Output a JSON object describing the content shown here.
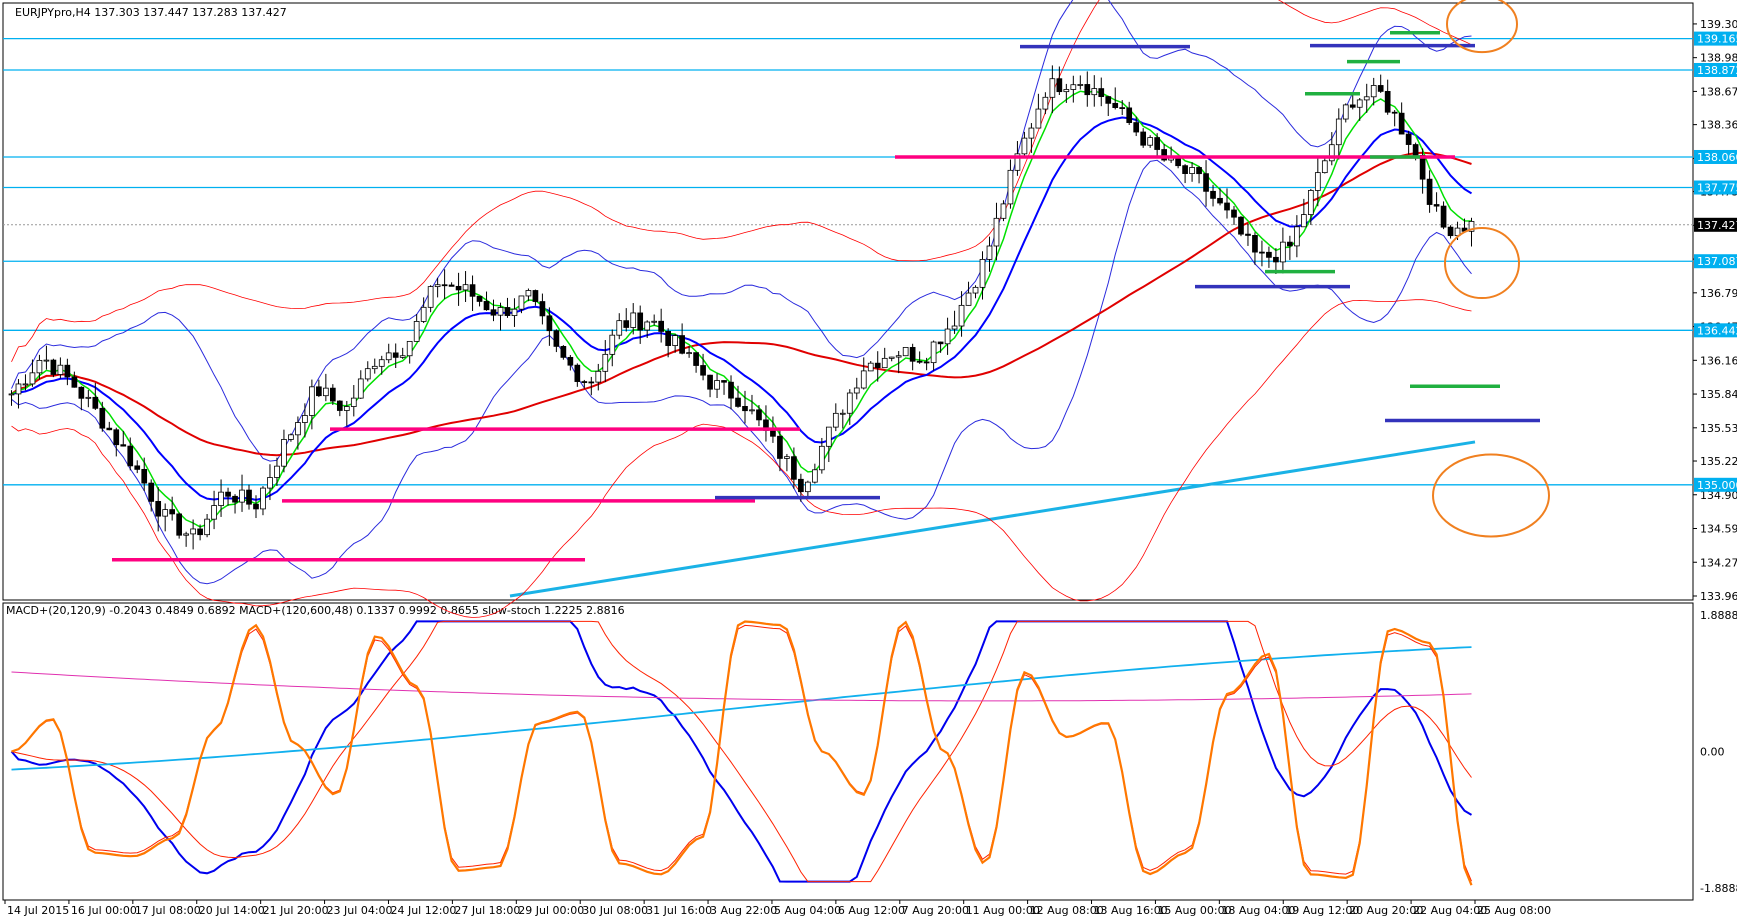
{
  "chart_data": {
    "type": "candlestick",
    "title": "EURJPYpro,H4  137.303 137.447 137.283 137.427",
    "symbol": "EURJPYpro",
    "timeframe": "H4",
    "ohlc_current": {
      "open": 137.303,
      "high": 137.447,
      "low": 137.283,
      "close": 137.427
    },
    "price_axis": {
      "ylim": [
        133.962,
        139.46
      ],
      "ticks": [
        139.302,
        138.987,
        138.672,
        138.362,
        138.047,
        137.737,
        137.422,
        137.107,
        136.792,
        136.477,
        136.162,
        135.847,
        135.532,
        135.222,
        134.907,
        134.592,
        134.277,
        133.962
      ]
    },
    "current_price_label": "137.427",
    "horizontal_levels": [
      {
        "value": 139.165,
        "label": "139.165"
      },
      {
        "value": 138.872,
        "label": "138.872"
      },
      {
        "value": 138.06,
        "label": "138.060"
      },
      {
        "value": 137.775,
        "label": "137.775"
      },
      {
        "value": 137.087,
        "label": "137.087"
      },
      {
        "value": 136.442,
        "label": "136.442"
      },
      {
        "value": 135.0,
        "label": "135.000"
      }
    ],
    "x_axis": {
      "labels": [
        "14 Jul 2015",
        "16 Jul 00:00",
        "17 Jul 08:00",
        "20 Jul 14:00",
        "21 Jul 20:00",
        "23 Jul 04:00",
        "24 Jul 12:00",
        "27 Jul 18:00",
        "29 Jul 00:00",
        "30 Jul 08:00",
        "31 Jul 16:00",
        "3 Aug 22:00",
        "5 Aug 04:00",
        "6 Aug 12:00",
        "7 Aug 20:00",
        "11 Aug 00:00",
        "12 Aug 08:00",
        "13 Aug 16:00",
        "15 Aug 00:00",
        "18 Aug 04:00",
        "19 Aug 12:00",
        "20 Aug 20:00",
        "22 Aug 04:00",
        "25 Aug 08:00"
      ]
    },
    "series_anchor_prices": [
      135.85,
      136.2,
      135.95,
      135.6,
      135.2,
      134.7,
      134.5,
      134.95,
      134.8,
      135.4,
      135.9,
      135.7,
      136.2,
      136.3,
      136.9,
      136.8,
      136.6,
      136.75,
      136.2,
      135.95,
      136.5,
      136.55,
      136.25,
      135.95,
      135.8,
      135.4,
      135.0,
      135.55,
      136.1,
      136.25,
      136.2,
      136.55,
      137.1,
      138.0,
      138.7,
      138.8,
      138.6,
      138.3,
      138.0,
      137.85,
      137.5,
      137.1,
      137.2,
      137.9,
      138.6,
      138.65,
      138.2,
      137.4,
      137.43
    ],
    "sub_indicator": {
      "header": "MACD+(20,120,9) -0.2043 0.4849 0.6892  MACD+(120,600,48) 0.1337 0.9992 0.8655  slow-stoch 1.2225 2.8816",
      "ylim": [
        -1.8888,
        1.8888
      ],
      "ticks": [
        "1.8888",
        "0.00",
        "-1.8888"
      ],
      "stoch_anchors": [
        0.0,
        0.45,
        -1.4,
        -1.45,
        -1.2,
        0.3,
        1.75,
        0.1,
        -0.6,
        1.6,
        0.9,
        -1.65,
        -1.6,
        0.4,
        0.55,
        -1.55,
        -1.7,
        -1.2,
        1.8,
        1.75,
        0.0,
        -0.6,
        1.8,
        0.0,
        -1.55,
        1.1,
        0.2,
        0.4,
        -1.7,
        -1.4,
        0.8,
        1.35,
        -1.7,
        -1.75,
        1.7,
        1.5,
        -1.85
      ]
    },
    "colors": {
      "candle_up": "#000000",
      "candle_down": "#000000",
      "ema_fast": "#00e000",
      "ema_mid": "#0000ff",
      "ema_slow": "#e00000",
      "bollinger_outer": "#2b2bdd",
      "bollinger_red": "#ff0000",
      "level_line": "#00b0f0",
      "trend_line": "#1ab2e6",
      "support_pink": "#ff0080",
      "support_blue": "#3333bb",
      "support_green": "#20b040",
      "ellipse": "#f08020",
      "stoch_main": "#ff7700",
      "stoch_signal": "#ff2200",
      "macd_blue": "#0000ee",
      "macd_cyan": "#11b0ee",
      "macd_magenta": "#e030b0"
    }
  }
}
